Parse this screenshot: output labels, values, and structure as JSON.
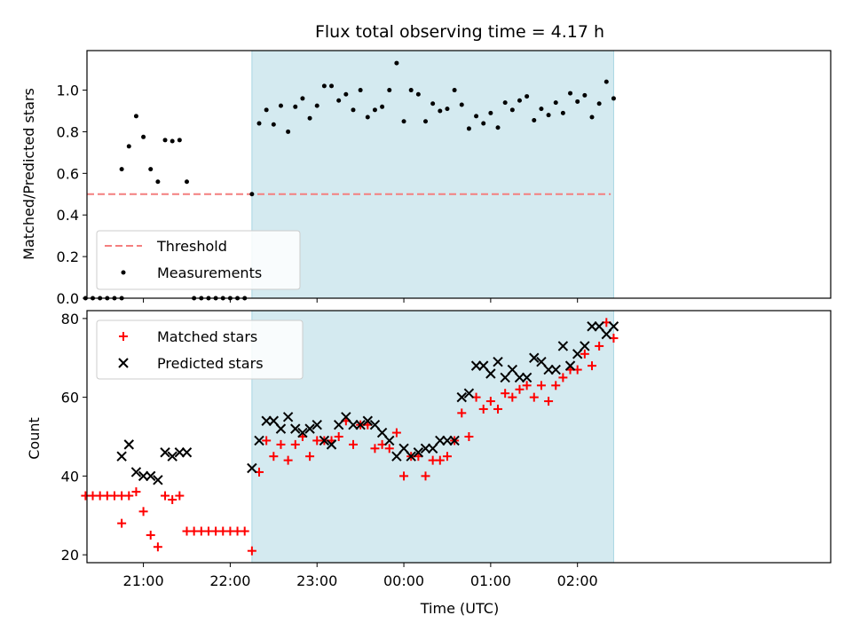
{
  "colors": {
    "shade": "#d4eaf0",
    "shade_edge": "#a9d6e3",
    "threshold": "#f47f7f",
    "measurements": "#000000",
    "matched": "#ff0000",
    "predicted": "#000000"
  },
  "chart_data": [
    {
      "type": "scatter",
      "title": "Flux total observing time = 4.17 h",
      "ylabel": "Matched/Predicted stars",
      "xlabel": "",
      "grid": false,
      "legend": "lower-left",
      "xlim": [
        -219,
        295
      ],
      "ylim": [
        0,
        1.19
      ],
      "xticks": [
        -180,
        -120,
        -60,
        0,
        60,
        120
      ],
      "yticks": [
        0,
        0.2,
        0.4,
        0.6,
        0.8,
        1.0
      ],
      "ytick_labels": [
        "0.0",
        "0.2",
        "0.4",
        "0.6",
        "0.8",
        "1.0"
      ],
      "shaded_region": [
        -105,
        145
      ],
      "series": [
        {
          "name": "Threshold",
          "style": "dashed-line",
          "x": [
            -219,
            143
          ],
          "y": [
            0.5,
            0.5
          ]
        },
        {
          "name": "Measurements",
          "style": "dot",
          "x": [
            -220,
            -215,
            -210,
            -205,
            -200,
            -195,
            -195,
            -190,
            -185,
            -180,
            -175,
            -170,
            -165,
            -160,
            -155,
            -150,
            -145,
            -140,
            -135,
            -130,
            -125,
            -120,
            -115,
            -110,
            -105,
            -100,
            -95,
            -90,
            -85,
            -80,
            -75,
            -70,
            -65,
            -60,
            -55,
            -50,
            -45,
            -40,
            -35,
            -30,
            -25,
            -20,
            -15,
            -10,
            -5,
            0,
            5,
            10,
            15,
            20,
            25,
            30,
            35,
            40,
            45,
            50,
            55,
            60,
            65,
            70,
            75,
            80,
            85,
            90,
            95,
            100,
            105,
            110,
            115,
            120,
            125,
            130,
            135,
            140,
            145
          ],
          "y": [
            0,
            0,
            0,
            0,
            0,
            0,
            0.62,
            0.73,
            0.875,
            0.775,
            0.62,
            0.56,
            0.76,
            0.755,
            0.76,
            0.56,
            0,
            0,
            0,
            0,
            0,
            0,
            0,
            0,
            0.5,
            0.84,
            0.905,
            0.835,
            0.925,
            0.8,
            0.92,
            0.96,
            0.865,
            0.925,
            1.02,
            1.02,
            0.95,
            0.98,
            0.905,
            1.0,
            0.87,
            0.905,
            0.92,
            1.0,
            1.13,
            0.85,
            1.0,
            0.98,
            0.85,
            0.935,
            0.9,
            0.91,
            1.0,
            0.93,
            0.815,
            0.875,
            0.84,
            0.89,
            0.82,
            0.94,
            0.905,
            0.95,
            0.97,
            0.855,
            0.91,
            0.88,
            0.94,
            0.89,
            0.985,
            0.945,
            0.975,
            0.87,
            0.935,
            1.04,
            0.96
          ]
        }
      ],
      "legend_entries": [
        "Threshold",
        "Measurements"
      ]
    },
    {
      "type": "scatter",
      "title": "",
      "ylabel": "Count",
      "xlabel": "Time (UTC)",
      "grid": false,
      "legend": "upper-left",
      "xlim": [
        -219,
        295
      ],
      "ylim": [
        18,
        82
      ],
      "xticks": [
        -180,
        -120,
        -60,
        0,
        60,
        120
      ],
      "xtick_labels": [
        "21:00",
        "22:00",
        "23:00",
        "00:00",
        "01:00",
        "02:00"
      ],
      "yticks": [
        20,
        40,
        60,
        80
      ],
      "ytick_labels": [
        "20",
        "40",
        "60",
        "80"
      ],
      "shaded_region": [
        -105,
        145
      ],
      "series": [
        {
          "name": "Matched stars",
          "style": "plus",
          "x": [
            -220,
            -215,
            -210,
            -205,
            -200,
            -195,
            -195,
            -190,
            -185,
            -180,
            -175,
            -170,
            -165,
            -160,
            -155,
            -150,
            -145,
            -140,
            -135,
            -130,
            -125,
            -120,
            -115,
            -110,
            -105,
            -100,
            -95,
            -90,
            -85,
            -80,
            -75,
            -70,
            -65,
            -60,
            -55,
            -50,
            -45,
            -40,
            -35,
            -30,
            -25,
            -20,
            -15,
            -10,
            -5,
            0,
            5,
            10,
            15,
            20,
            25,
            30,
            35,
            40,
            45,
            50,
            55,
            60,
            65,
            70,
            75,
            80,
            85,
            90,
            95,
            100,
            105,
            110,
            115,
            120,
            125,
            130,
            135,
            140,
            145
          ],
          "y": [
            35,
            35,
            35,
            35,
            35,
            35,
            28,
            35,
            36,
            31,
            25,
            22,
            35,
            34,
            35,
            26,
            26,
            26,
            26,
            26,
            26,
            26,
            26,
            26,
            21,
            41,
            49,
            45,
            48,
            44,
            48,
            50,
            45,
            49,
            49,
            49,
            50,
            54,
            48,
            53,
            53,
            47,
            48,
            47,
            51,
            40,
            45,
            45,
            40,
            44,
            44,
            45,
            49,
            56,
            50,
            60,
            57,
            59,
            57,
            61,
            60,
            62,
            63,
            60,
            63,
            59,
            63,
            65,
            67,
            67,
            71,
            68,
            73,
            79,
            75
          ]
        },
        {
          "name": "Predicted stars",
          "style": "x",
          "x": [
            -220,
            -215,
            -210,
            -205,
            -200,
            -195,
            -195,
            -190,
            -185,
            -180,
            -175,
            -170,
            -165,
            -160,
            -155,
            -150,
            -145,
            -140,
            -135,
            -130,
            -125,
            -120,
            -115,
            -110,
            -105,
            -100,
            -95,
            -90,
            -85,
            -80,
            -75,
            -70,
            -65,
            -60,
            -55,
            -50,
            -45,
            -40,
            -35,
            -30,
            -25,
            -20,
            -15,
            -10,
            -5,
            0,
            5,
            10,
            15,
            20,
            25,
            30,
            35,
            40,
            45,
            50,
            55,
            60,
            65,
            70,
            75,
            80,
            85,
            90,
            95,
            100,
            105,
            110,
            115,
            120,
            125,
            130,
            135,
            140,
            145
          ],
          "y": [
            null,
            null,
            null,
            null,
            null,
            null,
            45,
            48,
            41,
            40,
            40,
            39,
            46,
            45,
            46,
            46,
            null,
            null,
            null,
            null,
            null,
            null,
            null,
            null,
            42,
            49,
            54,
            54,
            52,
            55,
            52,
            51,
            52,
            53,
            49,
            48,
            53,
            55,
            53,
            53,
            54,
            53,
            51,
            49,
            45,
            47,
            45,
            46,
            47,
            47,
            49,
            49,
            49,
            60,
            61,
            68,
            68,
            66,
            69,
            65,
            67,
            65,
            65,
            70,
            69,
            67,
            67,
            73,
            68,
            71,
            73,
            78,
            78,
            76,
            78
          ]
        }
      ],
      "legend_entries": [
        "Matched stars",
        "Predicted stars"
      ]
    }
  ]
}
